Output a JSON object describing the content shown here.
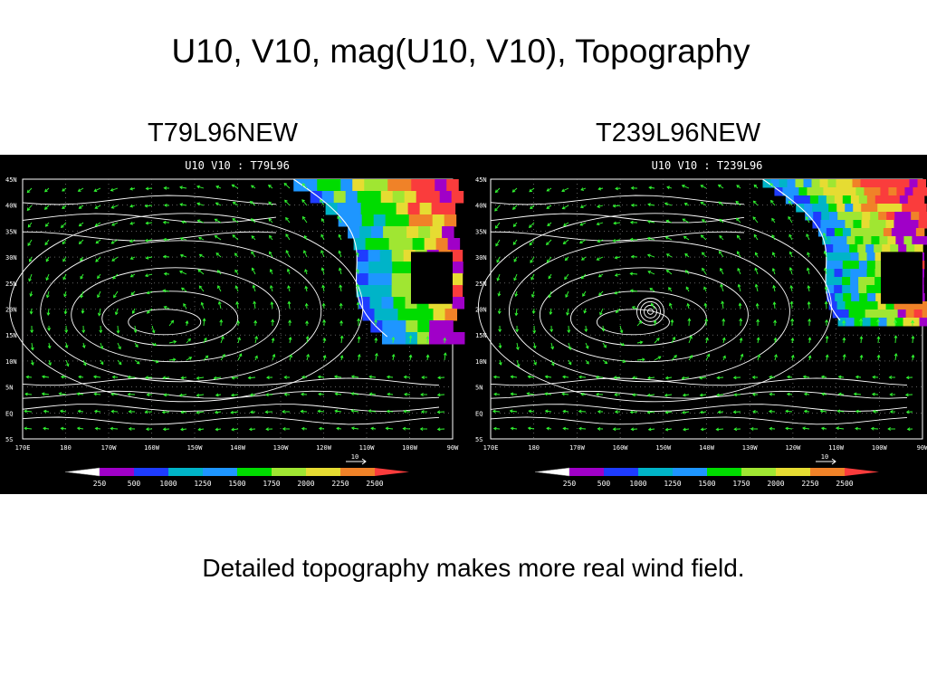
{
  "slide": {
    "title": "U10, V10, mag(U10, V10), Topography",
    "footnote": "Detailed topography makes more real wind field."
  },
  "panels": [
    {
      "caption": "T79L96NEW",
      "plot_title": "U10 V10 : T79L96",
      "lat_labels": [
        "45N",
        "40N",
        "35N",
        "30N",
        "25N",
        "20N",
        "15N",
        "10N",
        "5N",
        "EQ",
        "5S"
      ],
      "lon_labels": [
        "170E",
        "180",
        "170W",
        "160W",
        "150W",
        "140W",
        "130W",
        "120W",
        "110W",
        "100W",
        "90W"
      ],
      "colorbar_labels": [
        "250",
        "500",
        "1000",
        "1250",
        "1500",
        "1750",
        "2000",
        "2250",
        "2500"
      ],
      "vector_scale_label": "10"
    },
    {
      "caption": "T239L96NEW",
      "plot_title": "U10 V10 : T239L96",
      "lat_labels": [
        "45N",
        "40N",
        "35N",
        "30N",
        "25N",
        "20N",
        "15N",
        "10N",
        "5N",
        "EQ",
        "5S"
      ],
      "lon_labels": [
        "170E",
        "180",
        "170W",
        "160W",
        "150W",
        "140W",
        "130W",
        "120W",
        "110W",
        "100W",
        "90W"
      ],
      "colorbar_labels": [
        "250",
        "500",
        "1000",
        "1250",
        "1500",
        "1750",
        "2000",
        "2250",
        "2500"
      ],
      "vector_scale_label": "10"
    }
  ],
  "colors": {
    "background": "#000000",
    "contour": "#ffffff",
    "vector": "#33ff33",
    "colorbar": [
      "#ffffff",
      "#a000c8",
      "#1e3cff",
      "#00b4c8",
      "#1e96ff",
      "#00dc00",
      "#a0e632",
      "#e6dc32",
      "#f08228",
      "#fa3c3c"
    ]
  }
}
